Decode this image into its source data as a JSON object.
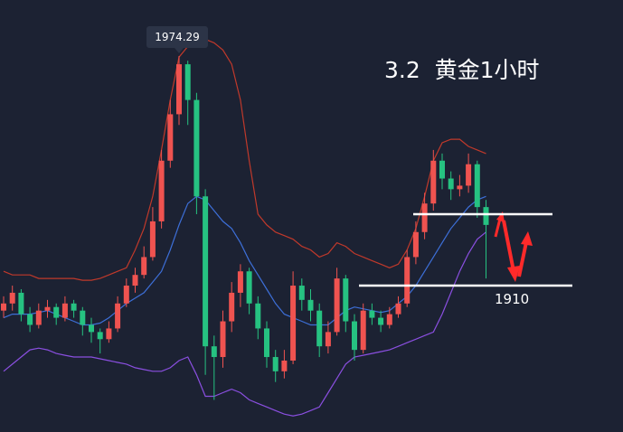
{
  "chart_data": {
    "type": "candlestick",
    "title": "3.2  黄金1小时",
    "categories": [
      null,
      null,
      null,
      null,
      null,
      null,
      null,
      null,
      null,
      null,
      null,
      null,
      null,
      null,
      null,
      null,
      null,
      null,
      null,
      null,
      null,
      null,
      null,
      null,
      null,
      null,
      null,
      null,
      null,
      null,
      null,
      null,
      null,
      null,
      null,
      null,
      null,
      null,
      null,
      null,
      null,
      null,
      null,
      null,
      null,
      null,
      null,
      null,
      null,
      null,
      null,
      null,
      null,
      null,
      null,
      null
    ],
    "open": [
      1903,
      1905,
      1908,
      1902,
      1899,
      1903,
      1904,
      1901,
      1905,
      1903,
      1899,
      1897,
      1895,
      1898,
      1905,
      1910,
      1913,
      1918,
      1928,
      1945,
      1958,
      1972,
      1962,
      1935,
      1893,
      1890,
      1900,
      1908,
      1914,
      1905,
      1898,
      1890,
      1886,
      1889,
      1910,
      1906,
      1903,
      1893,
      1897,
      1912,
      1900,
      1892,
      1903,
      1901,
      1899,
      1902,
      1905,
      1918,
      1925,
      1933,
      1945,
      1940,
      1937,
      1938,
      1944,
      1932
    ],
    "high": [
      1907,
      1910,
      1909,
      1904,
      1905,
      1906,
      1905,
      1907,
      1906,
      1904,
      1901,
      1898,
      1900,
      1907,
      1912,
      1915,
      1921,
      1932,
      1948,
      1962,
      1974.29,
      1973,
      1964,
      1937,
      1896,
      1903,
      1911,
      1916,
      1915,
      1907,
      1900,
      1892,
      1892,
      1914,
      1912,
      1909,
      1905,
      1900,
      1915,
      1913,
      1902,
      1905,
      1905,
      1903,
      1904,
      1907,
      1920,
      1928,
      1936,
      1948,
      1947,
      1942,
      1941,
      1947,
      1945,
      1934
    ],
    "low": [
      1901,
      1903,
      1900,
      1897,
      1898,
      1901,
      1899,
      1900,
      1901,
      1896,
      1894,
      1891,
      1894,
      1897,
      1904,
      1908,
      1912,
      1917,
      1926,
      1943,
      1955,
      1955,
      1930,
      1885,
      1878,
      1887,
      1897,
      1904,
      1902,
      1895,
      1887,
      1883,
      1884,
      1888,
      1903,
      1900,
      1890,
      1891,
      1896,
      1897,
      1889,
      1891,
      1899,
      1897,
      1898,
      1901,
      1904,
      1916,
      1923,
      1931,
      1937,
      1934,
      1935,
      1936,
      1929,
      1912
    ],
    "close": [
      1905,
      1908,
      1902,
      1899,
      1903,
      1904,
      1901,
      1905,
      1903,
      1899,
      1897,
      1895,
      1898,
      1905,
      1910,
      1913,
      1918,
      1928,
      1945,
      1958,
      1972,
      1962,
      1935,
      1893,
      1890,
      1900,
      1908,
      1914,
      1905,
      1898,
      1890,
      1886,
      1889,
      1910,
      1906,
      1903,
      1893,
      1897,
      1912,
      1900,
      1892,
      1903,
      1901,
      1899,
      1902,
      1905,
      1918,
      1925,
      1933,
      1945,
      1940,
      1937,
      1938,
      1944,
      1932,
      1927
    ],
    "up_color": "#ef5350",
    "down_color": "#26c281",
    "series": [
      {
        "color": "#c0392b",
        "values": [
          1914,
          1913,
          1913,
          1913,
          1912,
          1912,
          1912,
          1912,
          1912,
          1911.5,
          1911.5,
          1912,
          1913,
          1914,
          1915,
          1920,
          1926,
          1935,
          1948,
          1962,
          1974,
          1977,
          1979,
          1979,
          1978,
          1976,
          1972,
          1962,
          1945,
          1930,
          1927,
          1925,
          1924,
          1923,
          1921,
          1920,
          1918,
          1919,
          1922,
          1921,
          1919,
          1918,
          1917,
          1916,
          1915,
          1916,
          1920,
          1926,
          1935,
          1945,
          1950,
          1951,
          1951,
          1949,
          1948,
          1947
        ]
      },
      {
        "color": "#3d6fd8",
        "values": [
          1901,
          1902,
          1902,
          1902,
          1902.5,
          1903,
          1902,
          1901,
          1900,
          1899,
          1899,
          1899.5,
          1901,
          1903,
          1905,
          1906.5,
          1908,
          1911,
          1914,
          1920,
          1927,
          1933,
          1935,
          1934,
          1931,
          1928,
          1926,
          1922,
          1917,
          1913,
          1909,
          1905,
          1902,
          1901,
          1900,
          1899,
          1899,
          1899,
          1901,
          1903,
          1904,
          1903.5,
          1903,
          1902.5,
          1903,
          1905,
          1907,
          1910,
          1914,
          1918,
          1922,
          1926,
          1929,
          1932,
          1934,
          1935
        ]
      },
      {
        "color": "#8a4fe0",
        "values": [
          1886,
          1888,
          1890,
          1892,
          1892.5,
          1892,
          1891,
          1890.5,
          1890,
          1890,
          1890,
          1889.5,
          1889,
          1888.5,
          1888,
          1887,
          1886.5,
          1886,
          1886,
          1887,
          1889,
          1890,
          1885,
          1879,
          1879,
          1880,
          1881,
          1880,
          1878,
          1877,
          1876,
          1875,
          1874,
          1873.5,
          1874,
          1875,
          1876,
          1880,
          1884,
          1888,
          1890,
          1890.5,
          1891,
          1891.5,
          1892,
          1893,
          1894,
          1895,
          1896,
          1897,
          1902,
          1908,
          1914,
          1919,
          1923,
          1925
        ]
      }
    ],
    "hlines": [
      1930,
      1910
    ],
    "ylim": [
      1869,
      1990
    ]
  }
}
